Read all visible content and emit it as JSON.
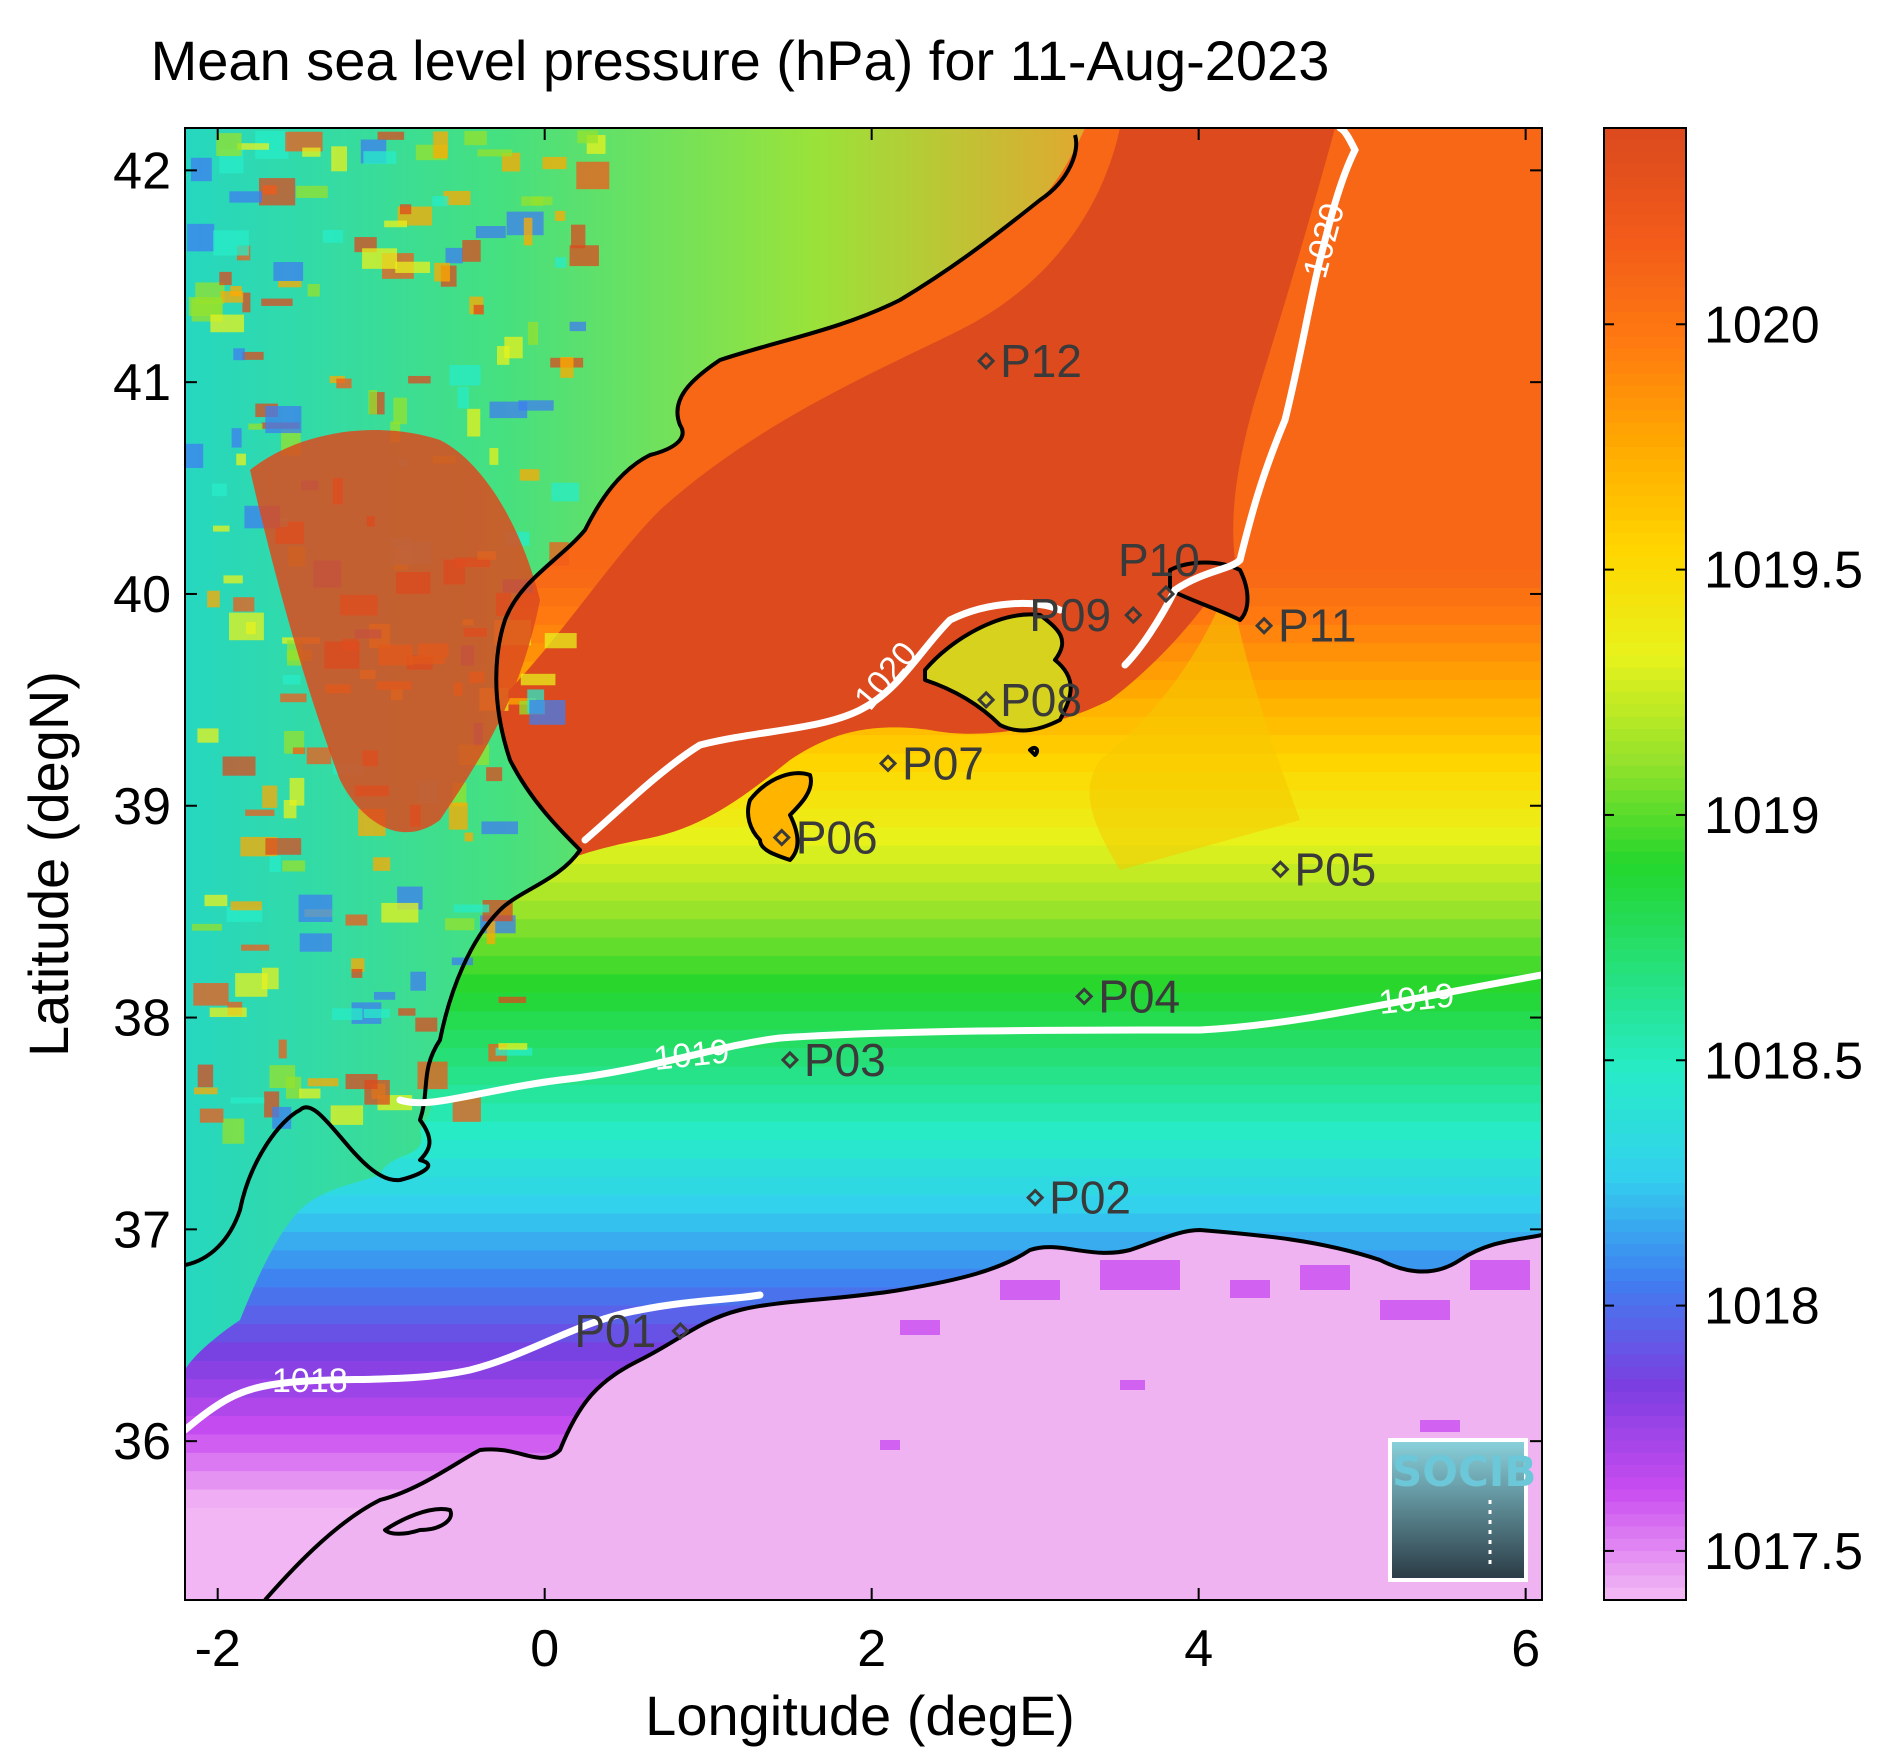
{
  "title": "Mean sea level pressure (hPa) for 11-Aug-2023",
  "chart_data": {
    "type": "heatmap",
    "title": "Mean sea level pressure (hPa) for 11-Aug-2023",
    "xlabel": "Longitude (degE)",
    "ylabel": "Latitude (degN)",
    "xlim": [
      -2.2,
      6.1
    ],
    "ylim": [
      35.25,
      42.2
    ],
    "x_ticks": [
      "-2",
      "0",
      "2",
      "4",
      "6"
    ],
    "y_ticks": [
      "36",
      "37",
      "38",
      "39",
      "40",
      "41",
      "42"
    ],
    "colorbar": {
      "range": [
        1017.4,
        1020.4
      ],
      "ticks": [
        "1017.5",
        "1018",
        "1018.5",
        "1019",
        "1019.5",
        "1020"
      ],
      "colors": [
        "#f2b6f4",
        "#c94cf0",
        "#7b3ee0",
        "#3f7ef0",
        "#33d0ee",
        "#27ecc8",
        "#26e07a",
        "#24d62c",
        "#96e22c",
        "#e8f21c",
        "#ffd600",
        "#ffaa00",
        "#ff7a10",
        "#f25b1a",
        "#dc4a1e"
      ]
    },
    "isobars": [
      {
        "value": 1018,
        "label": "1018"
      },
      {
        "value": 1019,
        "label": "1019"
      },
      {
        "value": 1020,
        "label": "1020"
      }
    ],
    "stations": [
      {
        "name": "P01",
        "lon": 0.83,
        "lat": 36.52
      },
      {
        "name": "P02",
        "lon": 3.0,
        "lat": 37.15
      },
      {
        "name": "P03",
        "lon": 1.5,
        "lat": 37.8
      },
      {
        "name": "P04",
        "lon": 3.3,
        "lat": 38.1
      },
      {
        "name": "P05",
        "lon": 4.5,
        "lat": 38.7
      },
      {
        "name": "P06",
        "lon": 1.45,
        "lat": 38.85
      },
      {
        "name": "P07",
        "lon": 2.1,
        "lat": 39.2
      },
      {
        "name": "P08",
        "lon": 2.7,
        "lat": 39.5
      },
      {
        "name": "P09",
        "lon": 3.6,
        "lat": 39.9
      },
      {
        "name": "P10",
        "lon": 3.8,
        "lat": 40.0
      },
      {
        "name": "P11",
        "lon": 4.4,
        "lat": 39.85
      },
      {
        "name": "P12",
        "lon": 2.7,
        "lat": 41.1
      }
    ]
  },
  "logo": {
    "text": "SOCIB"
  }
}
